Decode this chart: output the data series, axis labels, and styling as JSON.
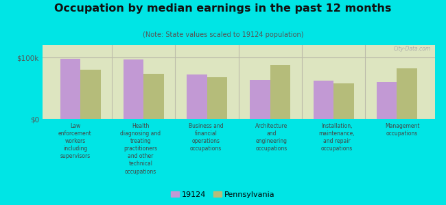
{
  "title": "Occupation by median earnings in the past 12 months",
  "subtitle": "(Note: State values scaled to 19124 population)",
  "background_outer": "#00e5e5",
  "background_inner": "#dde5c0",
  "bar_color_19124": "#c299d4",
  "bar_color_pa": "#b5bc7a",
  "categories": [
    "Law\nenforcement\nworkers\nincluding\nsupervisors",
    "Health\ndiagnosing and\ntreating\npractitioners\nand other\ntechnical\noccupations",
    "Business and\nfinancial\noperations\noccupations",
    "Architecture\nand\nengineering\noccupations",
    "Installation,\nmaintenance,\nand repair\noccupations",
    "Management\noccupations"
  ],
  "values_19124": [
    98000,
    97000,
    72000,
    63000,
    62000,
    60000
  ],
  "values_pa": [
    80000,
    73000,
    68000,
    88000,
    58000,
    82000
  ],
  "ymax": 120000,
  "yticks": [
    0,
    100000
  ],
  "ytick_labels": [
    "$0",
    "$100k"
  ],
  "legend_labels": [
    "19124",
    "Pennsylvania"
  ],
  "watermark": "City-Data.com"
}
